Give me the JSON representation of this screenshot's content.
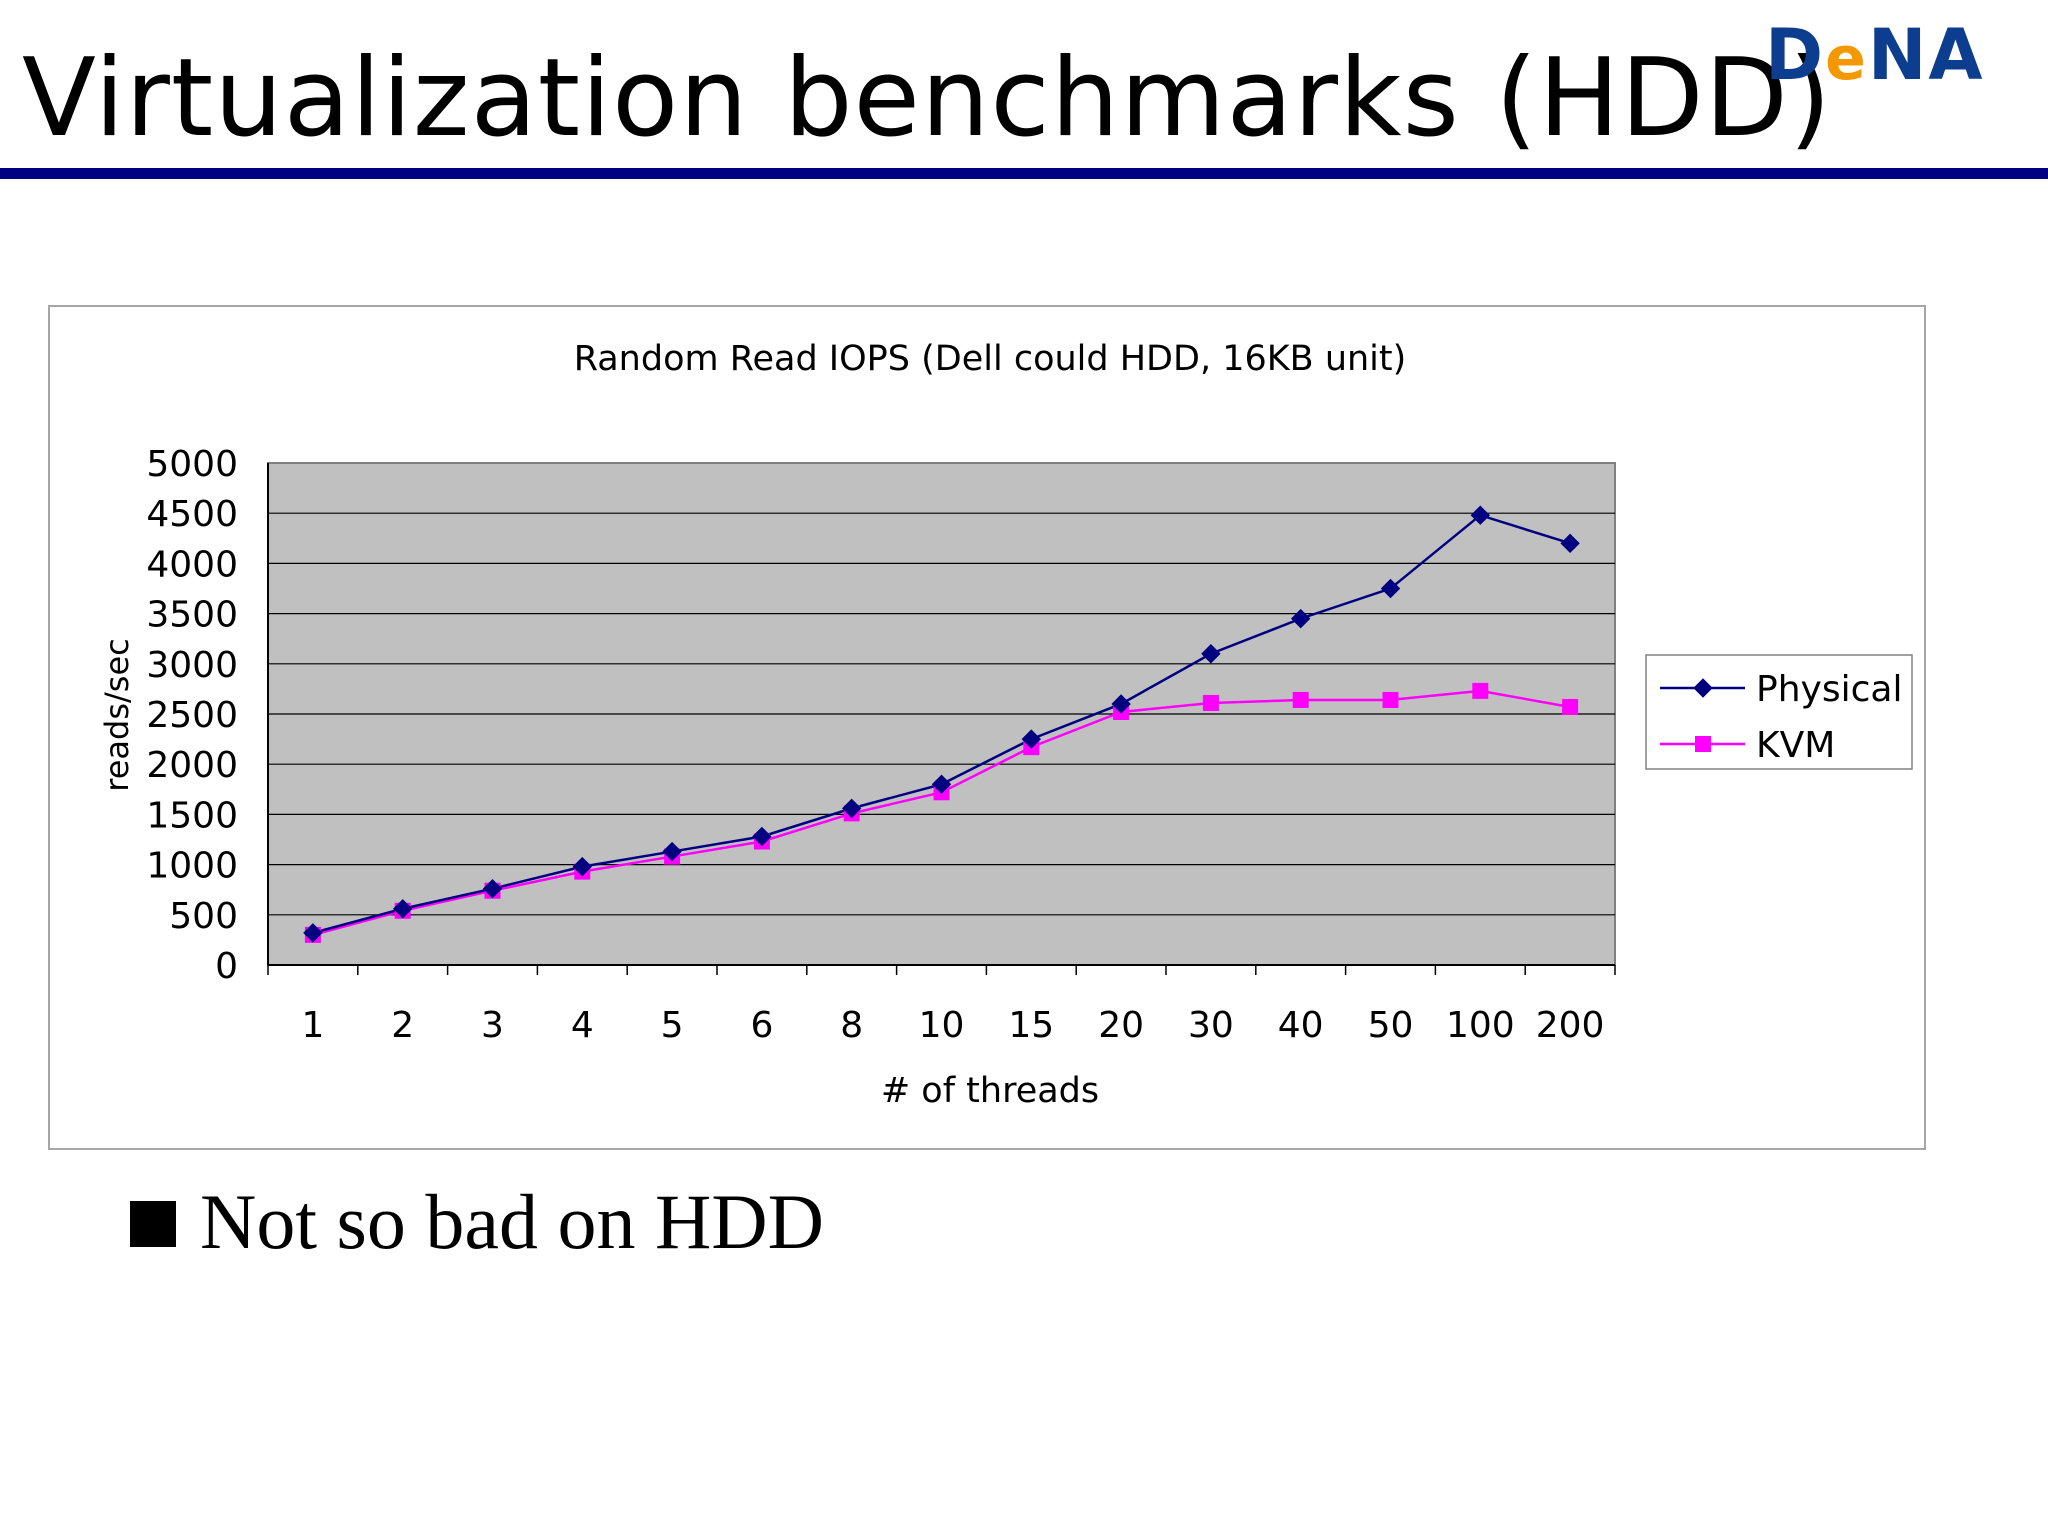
{
  "slide": {
    "title": "Virtualization benchmarks (HDD)",
    "logo": {
      "d": "D",
      "e": "e",
      "na": "NA"
    },
    "bullet": "Not so bad on HDD"
  },
  "colors": {
    "title_rule": "#000080",
    "plot_background": "#c0c0c0",
    "physical": "#000080",
    "kvm": "#ff00ff",
    "logo_blue": "#0d3d8f",
    "logo_orange": "#f39800"
  },
  "chart_data": {
    "type": "line",
    "title": "Random Read IOPS (Dell could HDD, 16KB unit)",
    "xlabel": "# of threads",
    "ylabel": "reads/sec",
    "categories": [
      "1",
      "2",
      "3",
      "4",
      "5",
      "6",
      "8",
      "10",
      "15",
      "20",
      "30",
      "40",
      "50",
      "100",
      "200"
    ],
    "ylim": [
      0,
      5000
    ],
    "yticks": [
      0,
      500,
      1000,
      1500,
      2000,
      2500,
      3000,
      3500,
      4000,
      4500,
      5000
    ],
    "grid": true,
    "legend_position": "right",
    "series": [
      {
        "name": "Physical",
        "marker": "diamond",
        "color": "#000080",
        "values": [
          320,
          560,
          760,
          980,
          1130,
          1280,
          1560,
          1800,
          2250,
          2600,
          3100,
          3450,
          3750,
          4480,
          4200
        ]
      },
      {
        "name": "KVM",
        "marker": "square",
        "color": "#ff00ff",
        "values": [
          300,
          540,
          740,
          930,
          1080,
          1230,
          1510,
          1720,
          2170,
          2520,
          2610,
          2640,
          2640,
          2730,
          2570
        ]
      }
    ]
  }
}
